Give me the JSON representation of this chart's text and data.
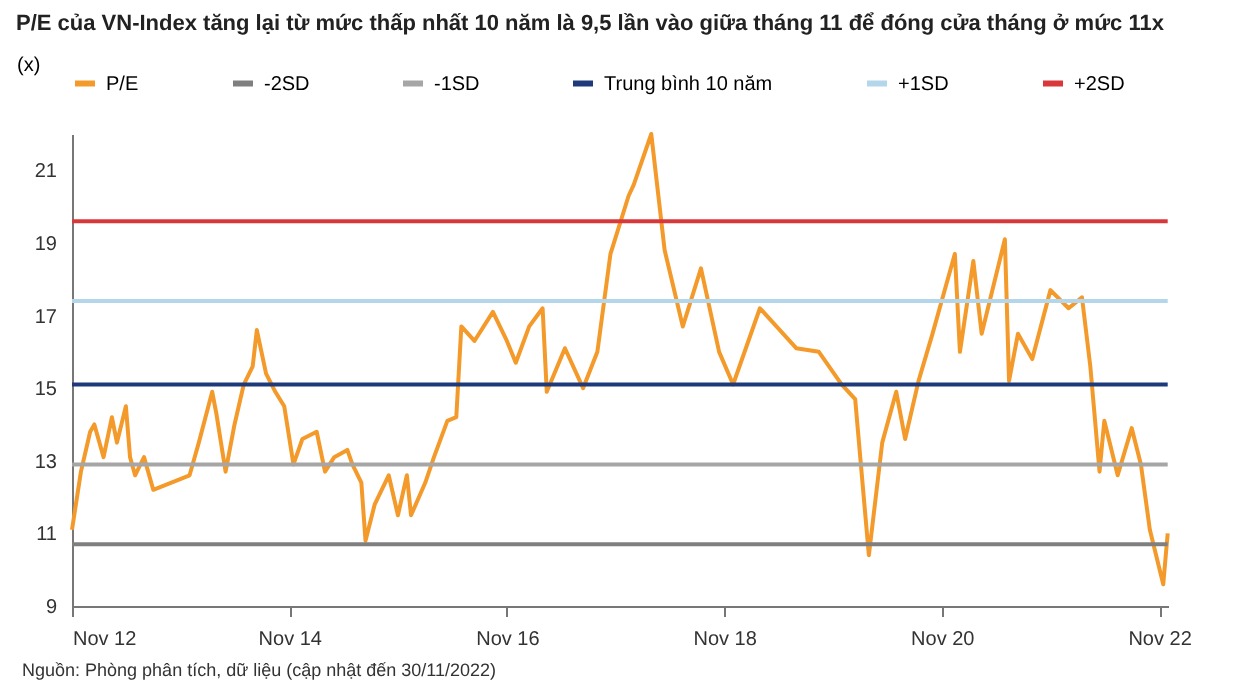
{
  "chart_data": {
    "type": "line",
    "title": "P/E của VN-Index tăng lại từ mức thấp nhất 10 năm là 9,5 lần vào giữa tháng 11 để đóng cửa tháng ở mức 11x",
    "ylabel": "(x)",
    "annotations": [
      "Nguồn: Phòng phân tích, dữ liệu (cập nhật đến 30/11/2022)"
    ],
    "x": [
      "2012-11-01",
      "2012-12-01",
      "2013-01-01",
      "2013-01-15",
      "2013-02-15",
      "2013-03-15",
      "2013-04-01",
      "2013-05-01",
      "2013-05-15",
      "2013-06-01",
      "2013-07-01",
      "2013-08-01",
      "2013-10-01",
      "2013-12-01",
      "2014-01-01",
      "2014-02-15",
      "2014-03-01",
      "2014-04-01",
      "2014-05-01",
      "2014-06-01",
      "2014-07-01",
      "2014-07-15",
      "2014-08-15",
      "2014-09-15",
      "2014-10-15",
      "2014-11-15",
      "2014-12-15",
      "2015-02-01",
      "2015-03-01",
      "2015-04-01",
      "2015-05-15",
      "2015-06-01",
      "2015-07-01",
      "2015-07-15",
      "2015-08-15",
      "2015-10-01",
      "2015-11-01",
      "2015-12-01",
      "2015-12-15",
      "2016-02-01",
      "2016-03-01",
      "2016-04-15",
      "2016-05-15",
      "2016-06-01",
      "2016-07-15",
      "2016-09-15",
      "2016-11-01",
      "2016-12-01",
      "2017-01-15",
      "2017-03-01",
      "2017-03-15",
      "2017-05-15",
      "2017-07-15",
      "2017-09-01",
      "2017-10-15",
      "2017-12-15",
      "2018-01-01",
      "2018-03-01",
      "2018-04-15",
      "2018-06-15",
      "2018-08-15",
      "2018-10-15",
      "2018-12-01",
      "2019-03-01",
      "2019-07-01",
      "2019-09-15",
      "2019-12-01",
      "2020-01-15",
      "2020-03-01",
      "2020-04-15",
      "2020-06-01",
      "2020-07-01",
      "2020-08-15",
      "2020-10-01",
      "2020-12-15",
      "2021-01-01",
      "2021-02-15",
      "2021-03-15",
      "2021-06-01",
      "2021-06-15",
      "2021-07-15",
      "2021-09-01",
      "2021-11-01",
      "2022-01-01",
      "2022-02-15",
      "2022-03-15",
      "2022-04-15",
      "2022-05-01",
      "2022-06-15",
      "2022-08-01",
      "2022-09-01",
      "2022-10-01",
      "2022-11-15",
      "2022-11-30"
    ],
    "series": [
      {
        "name": "P/E",
        "color": "#f39a2b",
        "values": [
          11.1,
          12.7,
          13.8,
          14.0,
          13.1,
          14.2,
          13.5,
          14.5,
          13.1,
          12.6,
          13.1,
          12.2,
          12.4,
          12.6,
          13.5,
          14.9,
          14.3,
          12.7,
          14.0,
          15.1,
          15.6,
          16.6,
          15.4,
          14.9,
          14.5,
          12.9,
          13.6,
          13.8,
          12.7,
          13.1,
          13.3,
          12.9,
          12.4,
          10.8,
          11.8,
          12.6,
          11.5,
          12.6,
          11.5,
          12.4,
          13.1,
          14.1,
          14.2,
          16.7,
          16.3,
          17.1,
          16.3,
          15.7,
          16.7,
          17.2,
          14.9,
          16.1,
          15.0,
          16.0,
          18.7,
          20.3,
          20.6,
          22.0,
          18.8,
          16.7,
          18.3,
          16.0,
          15.1,
          17.2,
          16.1,
          16.0,
          15.1,
          14.7,
          10.4,
          13.5,
          14.9,
          13.6,
          15.2,
          16.5,
          18.7,
          16.0,
          18.5,
          16.5,
          19.1,
          15.2,
          16.5,
          15.8,
          17.7,
          17.2,
          17.5,
          15.6,
          12.7,
          14.1,
          12.6,
          13.9,
          12.9,
          11.1,
          9.6,
          11.0
        ]
      },
      {
        "name": "-2SD",
        "color": "#7f7f7f",
        "x": [
          "2012-11-01",
          "2022-11-30"
        ],
        "values": [
          10.7,
          10.7
        ]
      },
      {
        "name": "-1SD",
        "color": "#a6a6a6",
        "x": [
          "2012-11-01",
          "2022-11-30"
        ],
        "values": [
          12.9,
          12.9
        ]
      },
      {
        "name": "Trung bình 10 năm",
        "color": "#1f3a7a",
        "x": [
          "2012-11-01",
          "2022-11-30"
        ],
        "values": [
          15.1,
          15.1
        ]
      },
      {
        "name": "+1SD",
        "color": "#b4d6ea",
        "x": [
          "2012-11-01",
          "2022-11-30"
        ],
        "values": [
          17.4,
          17.4
        ]
      },
      {
        "name": "+2SD",
        "color": "#d9383a",
        "x": [
          "2012-11-01",
          "2022-11-30"
        ],
        "values": [
          19.6,
          19.6
        ]
      }
    ],
    "xlim": [
      "2012-11-01",
      "2022-12-01"
    ],
    "xticks": [
      {
        "value": "2012-11-01",
        "label": "Nov 12"
      },
      {
        "value": "2014-11-01",
        "label": "Nov 14"
      },
      {
        "value": "2016-11-01",
        "label": "Nov 16"
      },
      {
        "value": "2018-11-01",
        "label": "Nov 18"
      },
      {
        "value": "2020-11-01",
        "label": "Nov 20"
      },
      {
        "value": "2022-11-01",
        "label": "Nov 22"
      }
    ],
    "ylim": [
      9,
      22
    ],
    "yticks": [
      9,
      11,
      13,
      15,
      17,
      19,
      21
    ],
    "grid": false,
    "legend": "top",
    "marker": "none",
    "line_style": "solid"
  }
}
